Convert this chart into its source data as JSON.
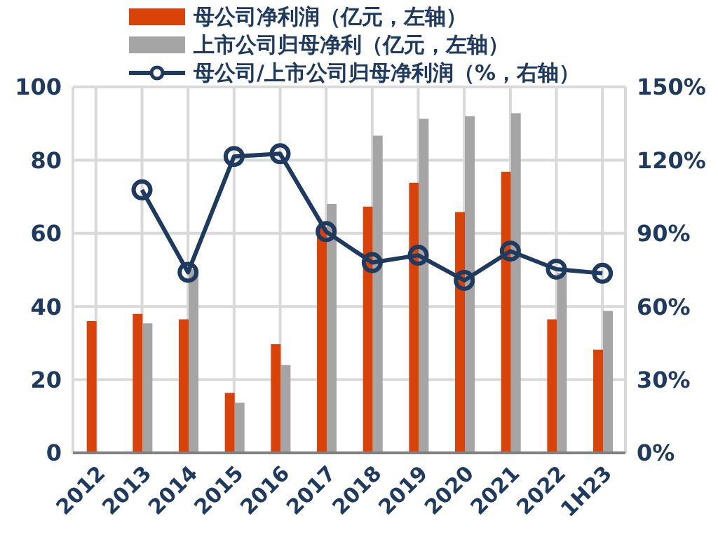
{
  "chart_data": {
    "type": "bar",
    "categories": [
      "2012",
      "2013",
      "2014",
      "2015",
      "2016",
      "2017",
      "2018",
      "2019",
      "2020",
      "2021",
      "2022",
      "1H23"
    ],
    "series": [
      {
        "name": "母公司净利润（亿元，左轴）",
        "color": "#d9430a",
        "values": [
          36,
          38,
          36.5,
          16.4,
          29.7,
          61.6,
          67.3,
          73.8,
          65.8,
          76.8,
          36.5,
          28.2
        ]
      },
      {
        "name": "上市公司归母净利（亿元，左轴）",
        "color": "#a5a5a5",
        "values": [
          null,
          35.4,
          50.2,
          13.7,
          24,
          68,
          86.7,
          91.3,
          92,
          92.8,
          49.2,
          38.8
        ]
      },
      {
        "name": "母公司/上市公司归母净利润（%，右轴）",
        "type": "line",
        "axis": "y2",
        "color": "#1f3a5f",
        "marker": "circle",
        "values": [
          null,
          107.8,
          74,
          121.5,
          122.6,
          90.7,
          78,
          81,
          70.7,
          82.7,
          75.3,
          73.6
        ]
      }
    ],
    "ylim": [
      0,
      100
    ],
    "yticks": [
      0,
      20,
      40,
      60,
      80,
      100
    ],
    "y2lim": [
      0,
      150
    ],
    "y2ticks": [
      {
        "value": 0,
        "label": "0%"
      },
      {
        "value": 30,
        "label": "30%"
      },
      {
        "value": 60,
        "label": "60%"
      },
      {
        "value": 90,
        "label": "90%"
      },
      {
        "value": 120,
        "label": "120%"
      },
      {
        "value": 150,
        "label": "150%"
      }
    ],
    "grid": true,
    "legend": "top"
  }
}
